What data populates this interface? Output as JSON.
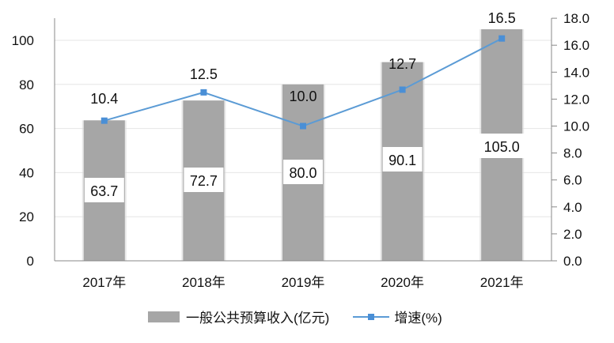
{
  "chart_data": {
    "type": "bar+line",
    "title": "",
    "categories": [
      "2017年",
      "2018年",
      "2019年",
      "2020年",
      "2021年"
    ],
    "series": [
      {
        "name": "一般公共预算收入(亿元)",
        "type": "bar",
        "axis": "left",
        "color": "#a6a6a6",
        "values": [
          63.7,
          72.7,
          80.0,
          90.1,
          105.0
        ],
        "labels": [
          "63.7",
          "72.7",
          "80.0",
          "90.1",
          "105.0"
        ]
      },
      {
        "name": "增速(%)",
        "type": "line",
        "axis": "right",
        "color": "#5b9bd5",
        "values": [
          10.4,
          12.5,
          10.0,
          12.7,
          16.5
        ],
        "labels": [
          "10.4",
          "12.5",
          "10.0",
          "12.7",
          "16.5"
        ]
      }
    ],
    "left_axis": {
      "ylim": [
        0,
        110
      ],
      "ticks": [
        "0",
        "20",
        "40",
        "60",
        "80",
        "100"
      ]
    },
    "right_axis": {
      "ylim": [
        0,
        18
      ],
      "ticks": [
        "0.0",
        "2.0",
        "4.0",
        "6.0",
        "8.0",
        "10.0",
        "12.0",
        "14.0",
        "16.0",
        "18.0"
      ]
    },
    "grid": true,
    "legend_position": "bottom"
  },
  "legend": {
    "bar_label": "一般公共预算收入(亿元)",
    "line_label": "增速(%)"
  }
}
